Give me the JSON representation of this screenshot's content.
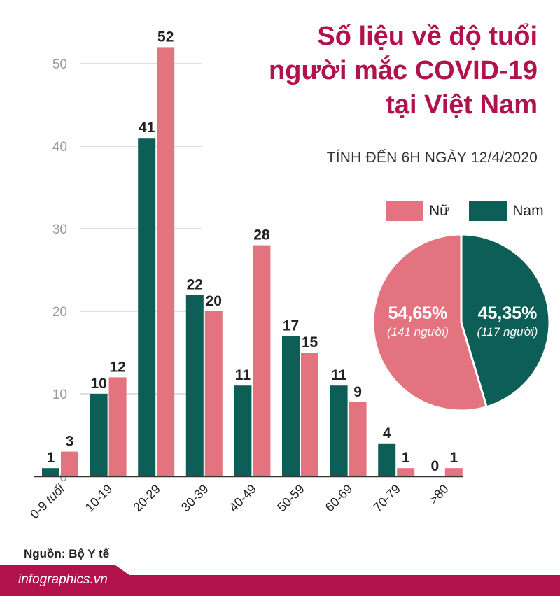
{
  "header": {
    "title_lines": [
      "Số liệu về độ tuổi",
      "người mắc COVID-19",
      "tại Việt Nam"
    ],
    "subtitle": "TÍNH ĐẾN 6H NGÀY 12/4/2020"
  },
  "colors": {
    "female": "#e3737f",
    "male": "#0d5e57",
    "title": "#b1124a",
    "grid": "#bdbdbd"
  },
  "legend": {
    "female": "Nữ",
    "male": "Nam"
  },
  "chart_data": [
    {
      "type": "bar",
      "categories": [
        "0-9 tuổi",
        "10-19",
        "20-29",
        "30-39",
        "40-49",
        "50-59",
        "60-69",
        "70-79",
        ">80"
      ],
      "series": [
        {
          "name": "Nam",
          "values": [
            1,
            10,
            41,
            22,
            11,
            17,
            11,
            4,
            0
          ]
        },
        {
          "name": "Nữ",
          "values": [
            3,
            12,
            52,
            20,
            28,
            15,
            9,
            1,
            1
          ]
        }
      ],
      "yticks": [
        0,
        10,
        20,
        30,
        40,
        50
      ],
      "ylim": [
        0,
        52
      ],
      "grid": true,
      "legend_position": "top-right"
    },
    {
      "type": "pie",
      "slices": [
        {
          "name": "Nữ",
          "percent_label": "54,65%",
          "count_label": "(141 người)",
          "value": 141
        },
        {
          "name": "Nam",
          "percent_label": "45,35%",
          "count_label": "(117 người)",
          "value": 117
        }
      ]
    }
  ],
  "source": "Nguồn: Bộ Y tế",
  "footer": "infographics.vn"
}
